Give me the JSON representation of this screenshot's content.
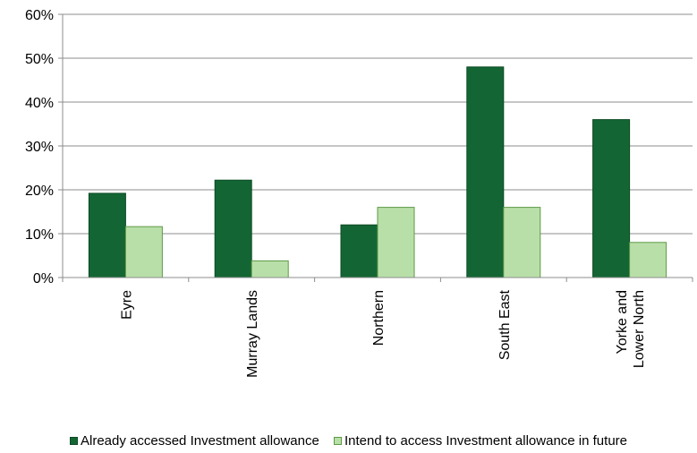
{
  "chart_data": {
    "type": "bar",
    "title": "",
    "xlabel": "",
    "ylabel": "",
    "categories": [
      [
        "Eyre"
      ],
      [
        "Murray Lands"
      ],
      [
        "Northern"
      ],
      [
        "South East"
      ],
      [
        "Yorke and",
        "Lower North"
      ]
    ],
    "series": [
      {
        "name": "Already accessed Investment allowance",
        "values": [
          19.2,
          22.2,
          12.0,
          48.0,
          36.0
        ],
        "color": "#136634",
        "stroke": "#0c4a24"
      },
      {
        "name": "Intend to access Investment allowance in future",
        "values": [
          11.6,
          3.8,
          16.0,
          16.0,
          8.0
        ],
        "color": "#b9dfa9",
        "stroke": "#5c9a45"
      }
    ],
    "y_ticks": [
      "0%",
      "10%",
      "20%",
      "30%",
      "40%",
      "50%",
      "60%"
    ],
    "y_tick_values": [
      0,
      10,
      20,
      30,
      40,
      50,
      60
    ],
    "ylim": [
      0,
      60
    ],
    "grid": true,
    "legend_position": "bottom"
  }
}
